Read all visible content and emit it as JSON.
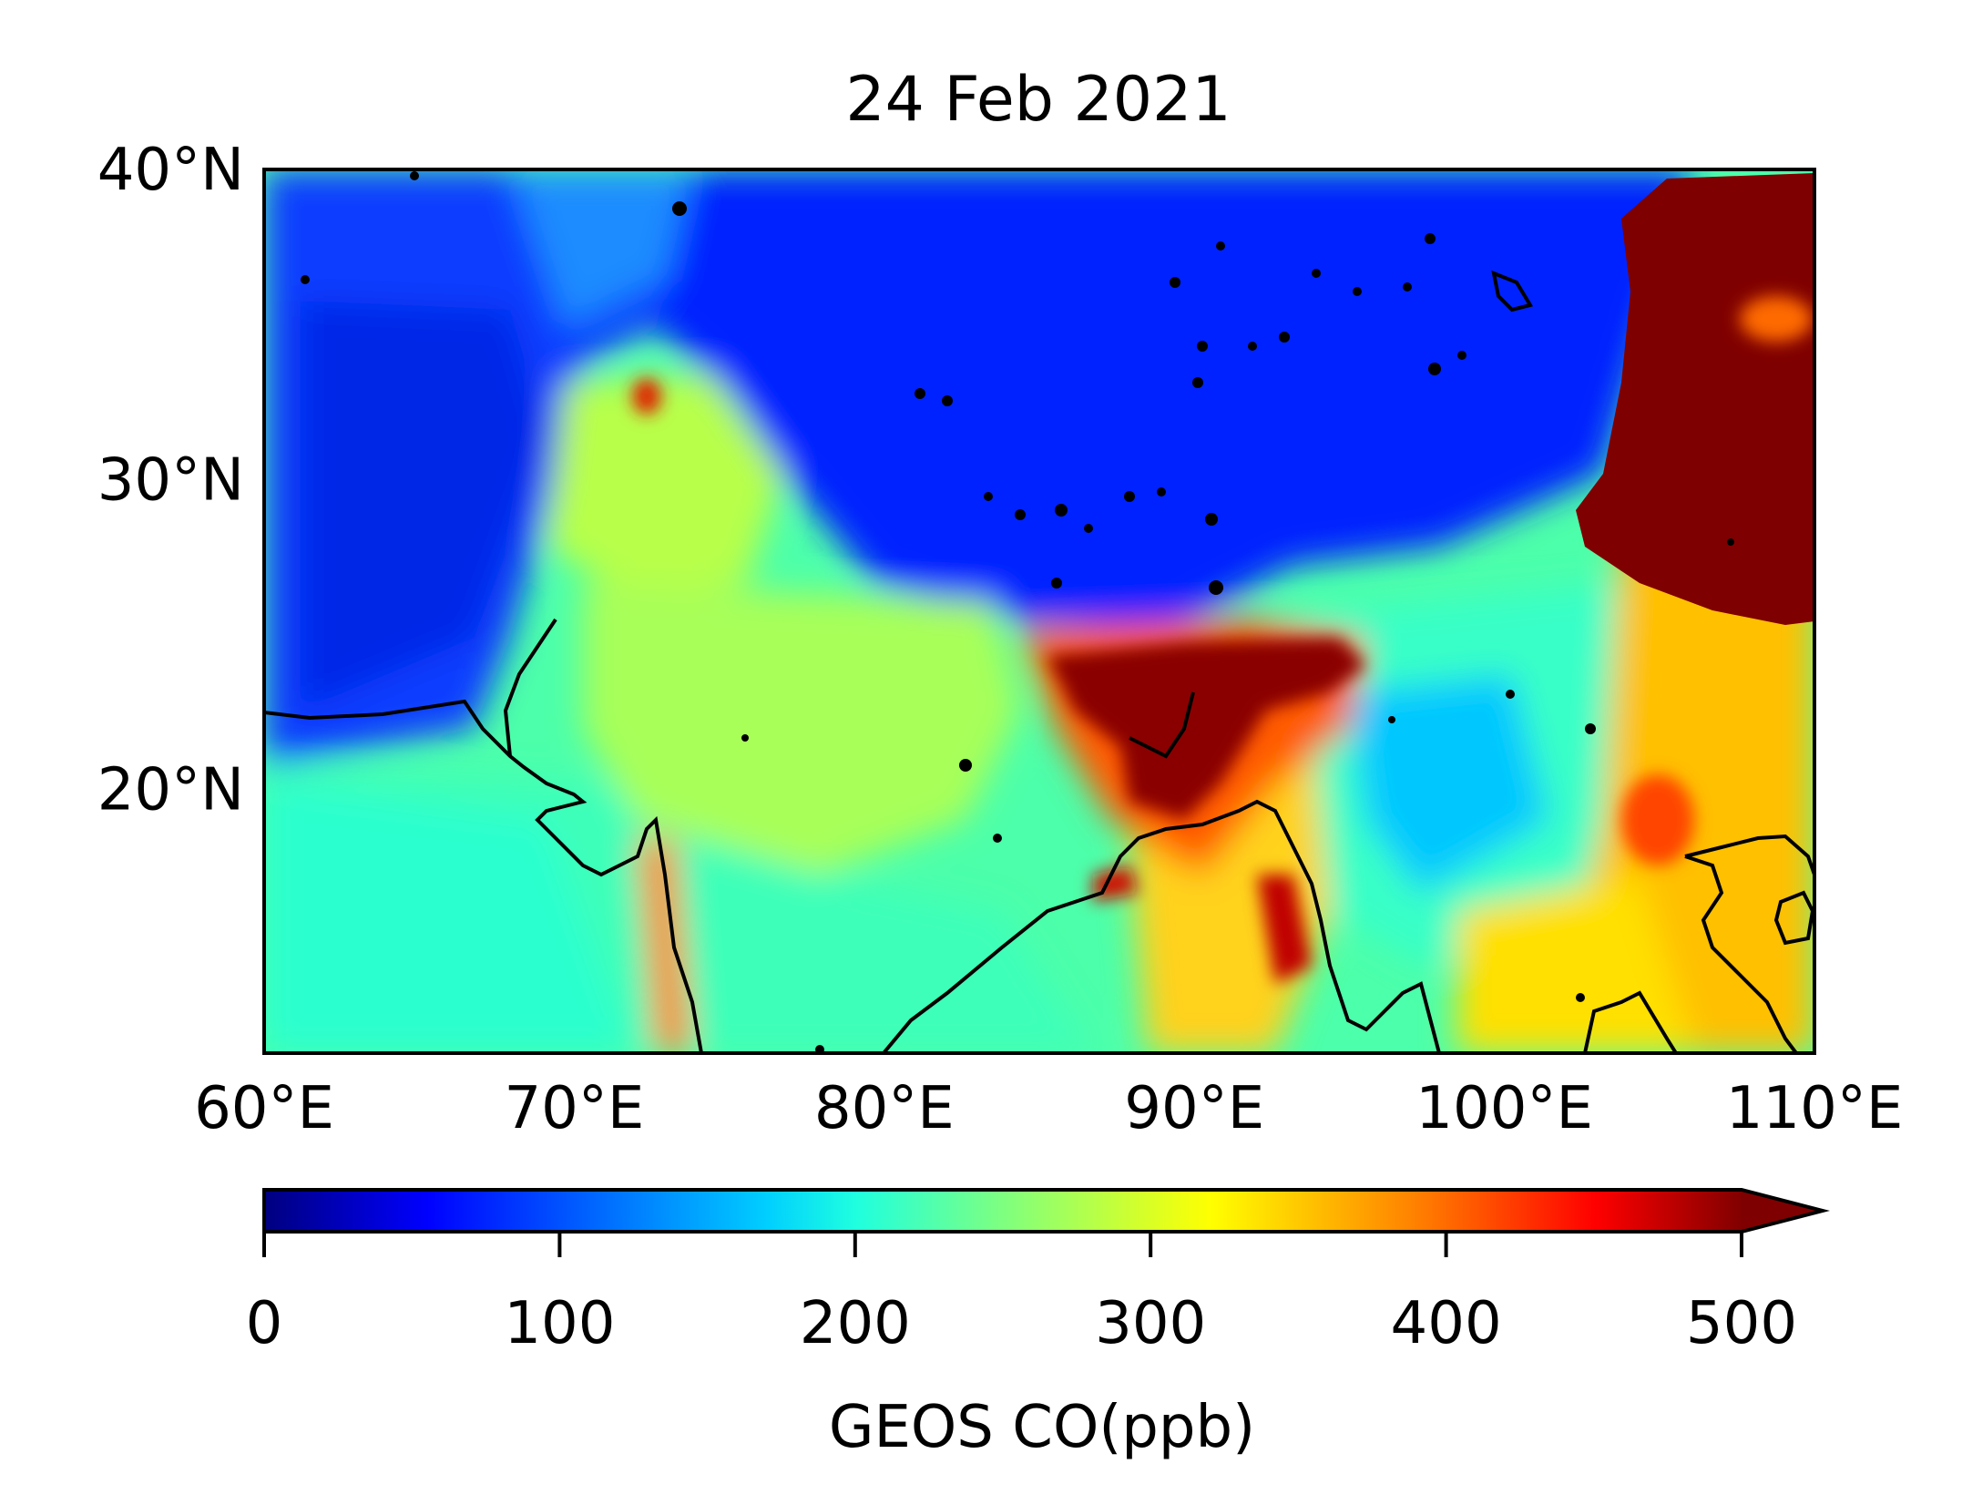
{
  "title": "24 Feb 2021",
  "map": {
    "lon_range": [
      60,
      110
    ],
    "lat_range": [
      11.5,
      40
    ],
    "lon_tick_labels": [
      {
        "value": 60,
        "label": "60°E"
      },
      {
        "value": 70,
        "label": "70°E"
      },
      {
        "value": 80,
        "label": "80°E"
      },
      {
        "value": 90,
        "label": "90°E"
      },
      {
        "value": 100,
        "label": "100°E"
      },
      {
        "value": 110,
        "label": "110°E"
      }
    ],
    "lat_tick_labels": [
      {
        "value": 40,
        "label": "40°N"
      },
      {
        "value": 30,
        "label": "30°N"
      },
      {
        "value": 20,
        "label": "20°N"
      }
    ],
    "field": "GEOS CO",
    "colormap": "jet",
    "features": [
      "coastlines",
      "lakes"
    ],
    "high_co_regions": [
      "Indo-Gangetic Plain / Bangladesh (>500 ppb)",
      "Sichuan Basin, China (>500 ppb)",
      "Mekong / Southeast Asia (~350-450 ppb)"
    ],
    "low_co_regions": [
      "Tibetan Plateau (~50-100 ppb)",
      "Iran / Afghanistan (~80-120 ppb)"
    ]
  },
  "colorbar": {
    "label": "GEOS CO(ppb)",
    "min": 0,
    "max": 500,
    "extend": "max",
    "ticks": [
      {
        "value": 0,
        "label": "0"
      },
      {
        "value": 100,
        "label": "100"
      },
      {
        "value": 200,
        "label": "200"
      },
      {
        "value": 300,
        "label": "300"
      },
      {
        "value": 400,
        "label": "400"
      },
      {
        "value": 500,
        "label": "500"
      }
    ],
    "colors": [
      "#00007f",
      "#0000ff",
      "#007fff",
      "#00ffff",
      "#7fff7f",
      "#ffff00",
      "#ff7f00",
      "#ff0000",
      "#7f0000"
    ]
  }
}
